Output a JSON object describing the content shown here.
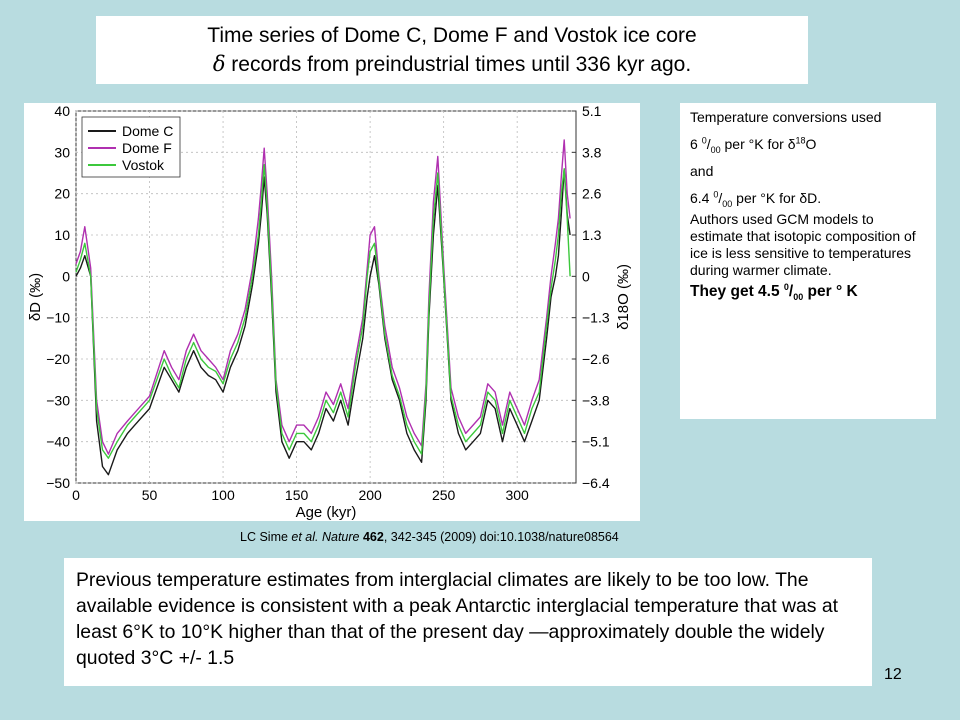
{
  "slide": {
    "title_line1": "Time series of Dome C, Dome F and Vostok ice core",
    "title_symbol": "δ",
    "title_line2": " records from preindustrial times until 336 kyr ago.",
    "page_number": "12"
  },
  "sidebar": {
    "l1": "Temperature conversions used",
    "l2_a": "6 ",
    "l2_sup": "0",
    "l2_sub": "00",
    "l2_b": " per  °K for ",
    "l2_delta": "δ",
    "l2_sup2": "18",
    "l2_c": "O",
    "l3": "and",
    "l4_a": "6.4 ",
    "l4_sup": "0",
    "l4_sub": "00",
    "l4_b": " per °K for ",
    "l4_c": "δD.",
    "l5": "Authors used GCM models to estimate that isotopic composition of ice is less sensitive to temperatures during warmer climate.",
    "l6_a": "They get 4.5 ",
    "l6_sup": "0",
    "l6_sub": "00",
    "l6_b": " per ° K"
  },
  "citation": {
    "a": "LC Sime ",
    "b": "et al. Nature",
    "c": " ",
    "d": "462",
    "e": ", 342-345 (2009) doi:10.1038/nature08564"
  },
  "bottom_text": "Previous temperature estimates from interglacial climates are likely to be too low. The available evidence is consistent with a peak Antarctic interglacial temperature that was at least 6°K to 10°K higher than that of the present day —approximately double the widely quoted 3°C +/- 1.5",
  "chart_data": {
    "type": "line",
    "xlabel": "Age (kyr)",
    "ylabel": "δD (‰)",
    "y2label": "δ18O (‰)",
    "xlim": [
      0,
      340
    ],
    "ylim": [
      -50,
      40
    ],
    "xticks": [
      0,
      50,
      100,
      150,
      200,
      250,
      300
    ],
    "yticks": [
      -50,
      -40,
      -30,
      -20,
      -10,
      0,
      10,
      20,
      30,
      40
    ],
    "y2ticks": [
      {
        "label": "5.1",
        "at": 40
      },
      {
        "label": "3.8",
        "at": 30
      },
      {
        "label": "2.6",
        "at": 20
      },
      {
        "label": "1.3",
        "at": 10
      },
      {
        "label": "0",
        "at": 0
      },
      {
        "label": "−1.3",
        "at": -10
      },
      {
        "label": "−2.6",
        "at": -20
      },
      {
        "label": "−3.8",
        "at": -30
      },
      {
        "label": "−5.1",
        "at": -40
      },
      {
        "label": "−6.4",
        "at": -50
      }
    ],
    "legend_position": "top-left",
    "series": [
      {
        "name": "Dome C",
        "color": "#1a1a1a",
        "x": [
          0,
          3,
          6,
          10,
          14,
          18,
          22,
          28,
          35,
          40,
          50,
          60,
          65,
          70,
          75,
          80,
          85,
          90,
          95,
          100,
          105,
          110,
          115,
          120,
          124,
          126,
          128,
          130,
          133,
          136,
          140,
          145,
          150,
          155,
          160,
          165,
          170,
          175,
          180,
          185,
          190,
          195,
          198,
          200,
          203,
          206,
          210,
          215,
          220,
          225,
          230,
          235,
          238,
          240,
          243,
          246,
          250,
          255,
          260,
          265,
          270,
          275,
          280,
          285,
          290,
          295,
          300,
          305,
          310,
          315,
          320,
          323,
          326,
          328,
          330,
          332,
          334,
          336
        ],
        "y": [
          0,
          2,
          5,
          0,
          -35,
          -46,
          -48,
          -42,
          -38,
          -36,
          -32,
          -22,
          -25,
          -28,
          -22,
          -18,
          -22,
          -24,
          -25,
          -28,
          -22,
          -18,
          -12,
          -2,
          8,
          15,
          24,
          15,
          -5,
          -28,
          -40,
          -44,
          -40,
          -40,
          -42,
          -38,
          -32,
          -35,
          -30,
          -36,
          -25,
          -15,
          -5,
          0,
          5,
          -2,
          -15,
          -25,
          -30,
          -38,
          -42,
          -45,
          -30,
          -10,
          10,
          22,
          0,
          -30,
          -38,
          -42,
          -40,
          -38,
          -30,
          -32,
          -40,
          -32,
          -36,
          -40,
          -35,
          -30,
          -15,
          -5,
          0,
          5,
          15,
          26,
          15,
          10
        ]
      },
      {
        "name": "Dome F",
        "color": "#b030b0",
        "x": [
          0,
          3,
          6,
          10,
          14,
          18,
          22,
          28,
          35,
          40,
          50,
          60,
          65,
          70,
          75,
          80,
          85,
          90,
          95,
          100,
          105,
          110,
          115,
          120,
          124,
          126,
          128,
          130,
          133,
          136,
          140,
          145,
          150,
          155,
          160,
          165,
          170,
          175,
          180,
          185,
          190,
          195,
          198,
          200,
          203,
          206,
          210,
          215,
          220,
          225,
          230,
          235,
          238,
          240,
          243,
          246,
          250,
          255,
          260,
          265,
          270,
          275,
          280,
          285,
          290,
          295,
          300,
          305,
          310,
          315,
          320,
          323,
          326,
          328,
          330,
          332,
          334,
          336
        ],
        "y": [
          3,
          6,
          12,
          2,
          -30,
          -40,
          -43,
          -38,
          -35,
          -33,
          -29,
          -18,
          -22,
          -25,
          -18,
          -14,
          -18,
          -20,
          -22,
          -25,
          -18,
          -14,
          -8,
          2,
          14,
          22,
          31,
          20,
          0,
          -25,
          -36,
          -40,
          -36,
          -36,
          -38,
          -34,
          -28,
          -31,
          -26,
          -32,
          -20,
          -10,
          2,
          10,
          12,
          0,
          -12,
          -22,
          -27,
          -34,
          -38,
          -41,
          -26,
          -5,
          18,
          29,
          3,
          -27,
          -34,
          -38,
          -36,
          -34,
          -26,
          -28,
          -36,
          -28,
          -32,
          -36,
          -30,
          -25,
          -10,
          0,
          8,
          14,
          24,
          33,
          20,
          14
        ]
      },
      {
        "name": "Vostok",
        "color": "#3cc83c",
        "x": [
          0,
          3,
          6,
          10,
          14,
          18,
          22,
          28,
          35,
          40,
          50,
          60,
          65,
          70,
          75,
          80,
          85,
          90,
          95,
          100,
          105,
          110,
          115,
          120,
          124,
          126,
          128,
          130,
          133,
          136,
          140,
          145,
          150,
          155,
          160,
          165,
          170,
          175,
          180,
          185,
          190,
          195,
          198,
          200,
          203,
          206,
          210,
          215,
          220,
          225,
          230,
          235,
          238,
          240,
          243,
          246,
          250,
          255,
          260,
          265,
          270,
          275,
          280,
          285,
          290,
          295,
          300,
          305,
          310,
          315,
          320,
          323,
          326,
          328,
          330,
          332,
          334,
          336
        ],
        "y": [
          1,
          4,
          8,
          0,
          -32,
          -42,
          -44,
          -40,
          -36,
          -34,
          -30,
          -20,
          -24,
          -27,
          -20,
          -16,
          -20,
          -22,
          -23,
          -26,
          -20,
          -16,
          -10,
          0,
          10,
          18,
          27,
          17,
          -3,
          -26,
          -38,
          -42,
          -38,
          -38,
          -40,
          -36,
          -30,
          -33,
          -28,
          -34,
          -22,
          -12,
          0,
          6,
          8,
          -1,
          -14,
          -24,
          -29,
          -36,
          -40,
          -43,
          -28,
          -8,
          14,
          25,
          1,
          -29,
          -36,
          -40,
          -38,
          -36,
          -28,
          -30,
          -38,
          -30,
          -34,
          -38,
          -32,
          -28,
          -12,
          -3,
          4,
          10,
          20,
          26,
          14,
          0
        ]
      }
    ]
  }
}
